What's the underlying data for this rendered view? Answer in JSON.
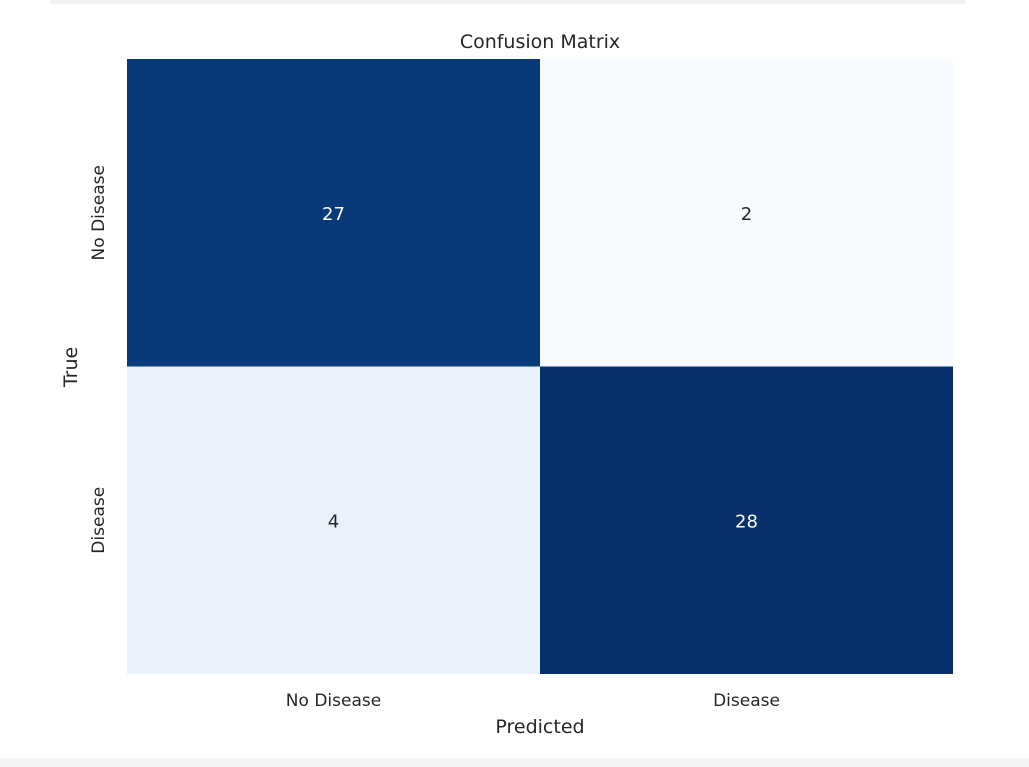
{
  "chart_data": {
    "type": "heatmap",
    "title": "Confusion Matrix",
    "xlabel": "Predicted",
    "ylabel": "True",
    "x_categories": [
      "No Disease",
      "Disease"
    ],
    "y_categories": [
      "No Disease",
      "Disease"
    ],
    "values": [
      [
        27,
        2
      ],
      [
        4,
        28
      ]
    ],
    "colormap": "Blues",
    "color_min": "#f7fbff",
    "color_max": "#08306b",
    "colorbar": false,
    "grid": false
  }
}
